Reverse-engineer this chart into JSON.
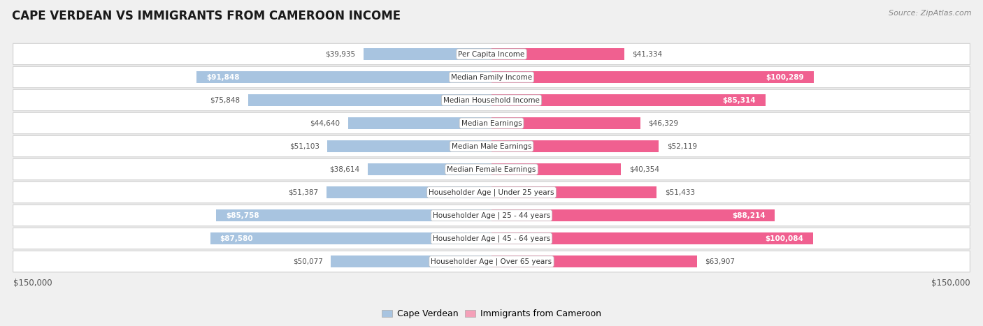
{
  "title": "CAPE VERDEAN VS IMMIGRANTS FROM CAMEROON INCOME",
  "source": "Source: ZipAtlas.com",
  "categories": [
    "Per Capita Income",
    "Median Family Income",
    "Median Household Income",
    "Median Earnings",
    "Median Male Earnings",
    "Median Female Earnings",
    "Householder Age | Under 25 years",
    "Householder Age | 25 - 44 years",
    "Householder Age | 45 - 64 years",
    "Householder Age | Over 65 years"
  ],
  "cape_verdean": [
    39935,
    91848,
    75848,
    44640,
    51103,
    38614,
    51387,
    85758,
    87580,
    50077
  ],
  "cameroon": [
    41334,
    100289,
    85314,
    46329,
    52119,
    40354,
    51433,
    88214,
    100084,
    63907
  ],
  "cape_verdean_labels": [
    "$39,935",
    "$91,848",
    "$75,848",
    "$44,640",
    "$51,103",
    "$38,614",
    "$51,387",
    "$85,758",
    "$87,580",
    "$50,077"
  ],
  "cameroon_labels": [
    "$41,334",
    "$100,289",
    "$85,314",
    "$46,329",
    "$52,119",
    "$40,354",
    "$51,433",
    "$88,214",
    "$100,084",
    "$63,907"
  ],
  "color_cape_verdean_light": "#a8c4e0",
  "color_cape_verdean_dark": "#5b9bd5",
  "color_cameroon_light": "#f4a0b8",
  "color_cameroon_dark": "#f06090",
  "max_value": 150000,
  "label_inside_threshold": 80000,
  "bg_color": "#f0f0f0",
  "row_bg": "#ffffff",
  "row_border": "#d0d0d0",
  "axis_label_color": "#555555",
  "outside_label_color": "#555555"
}
